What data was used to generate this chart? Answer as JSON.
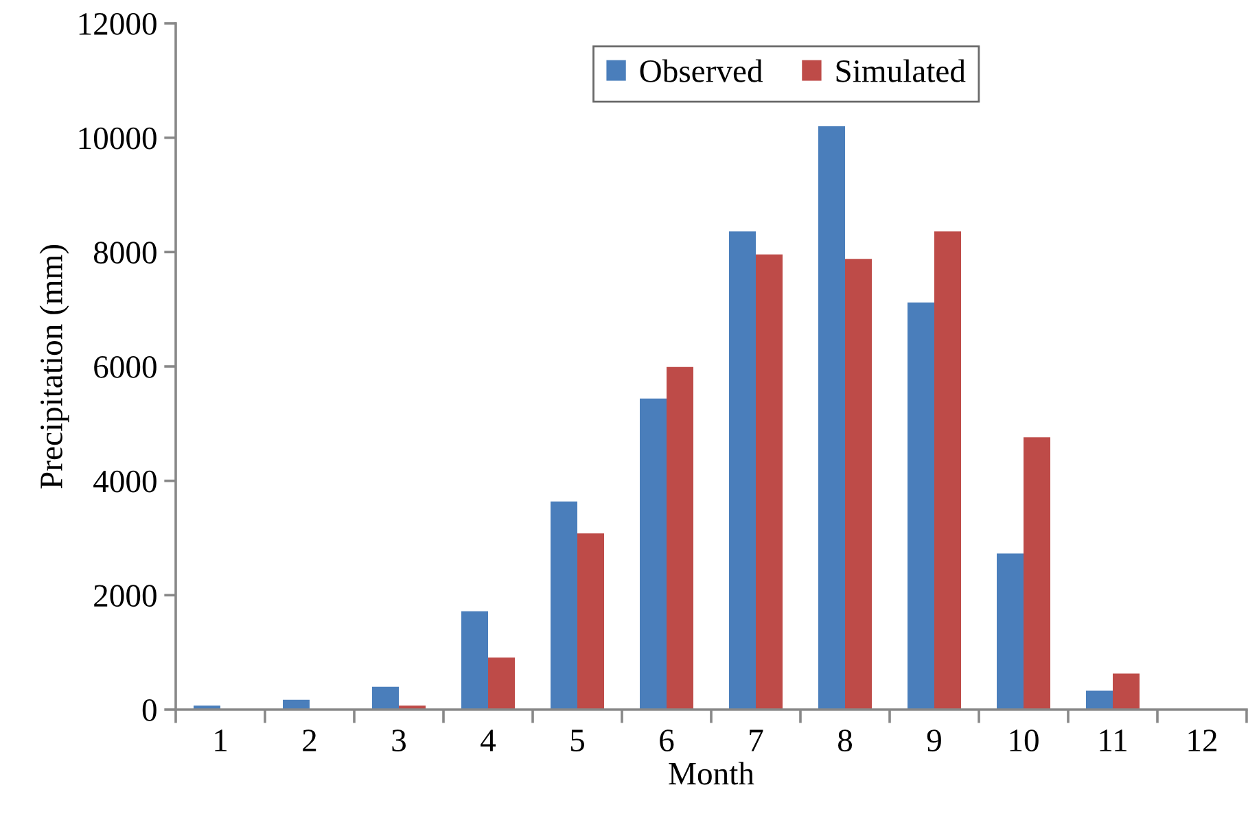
{
  "chart_data": {
    "type": "bar",
    "xlabel": "Month",
    "ylabel": "Precipitation (mm)",
    "categories": [
      "1",
      "2",
      "3",
      "4",
      "5",
      "6",
      "7",
      "8",
      "9",
      "10",
      "11",
      "12"
    ],
    "series": [
      {
        "name": "Observed",
        "color": "#4a7ebb",
        "values": [
          70,
          170,
          400,
          1720,
          3640,
          5440,
          8360,
          10200,
          7120,
          2730,
          330,
          0
        ]
      },
      {
        "name": "Simulated",
        "color": "#be4b48",
        "values": [
          0,
          0,
          70,
          910,
          3080,
          5990,
          7960,
          7880,
          8360,
          4760,
          630,
          0
        ]
      }
    ],
    "ylim": [
      0,
      12000
    ],
    "yticks": [
      0,
      2000,
      4000,
      6000,
      8000,
      10000,
      12000
    ],
    "grid": false,
    "legend": "top"
  }
}
